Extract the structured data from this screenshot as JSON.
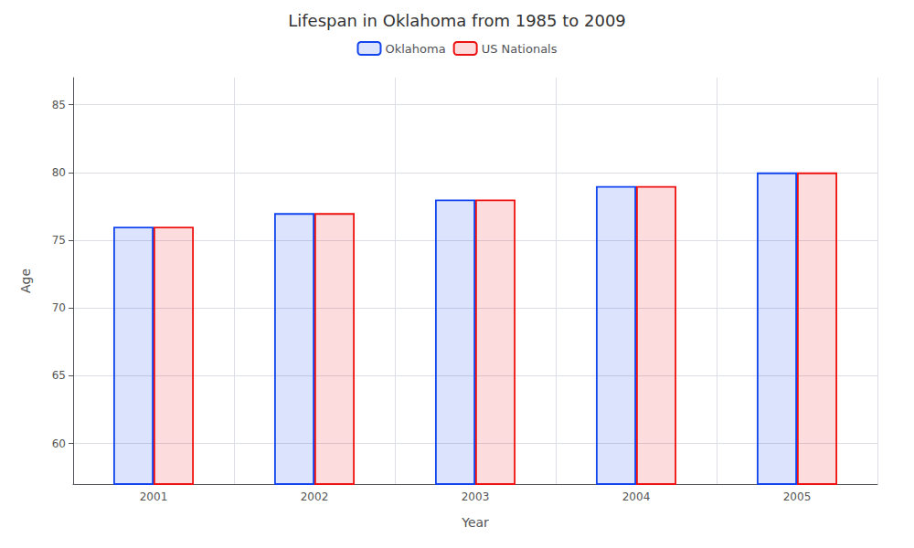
{
  "chart_data": {
    "type": "bar",
    "title": "Lifespan in Oklahoma from 1985 to 2009",
    "xlabel": "Year",
    "ylabel": "Age",
    "categories": [
      "2001",
      "2002",
      "2003",
      "2004",
      "2005"
    ],
    "series": [
      {
        "name": "Oklahoma",
        "color": "#1144ee",
        "values": [
          76,
          77,
          78,
          79,
          80
        ]
      },
      {
        "name": "US Nationals",
        "color": "#ee1111",
        "values": [
          76,
          77,
          78,
          79,
          80
        ]
      }
    ],
    "ylim": [
      57,
      87
    ],
    "yticks": [
      60,
      65,
      70,
      75,
      80,
      85
    ],
    "grid": true,
    "legend": "top"
  }
}
